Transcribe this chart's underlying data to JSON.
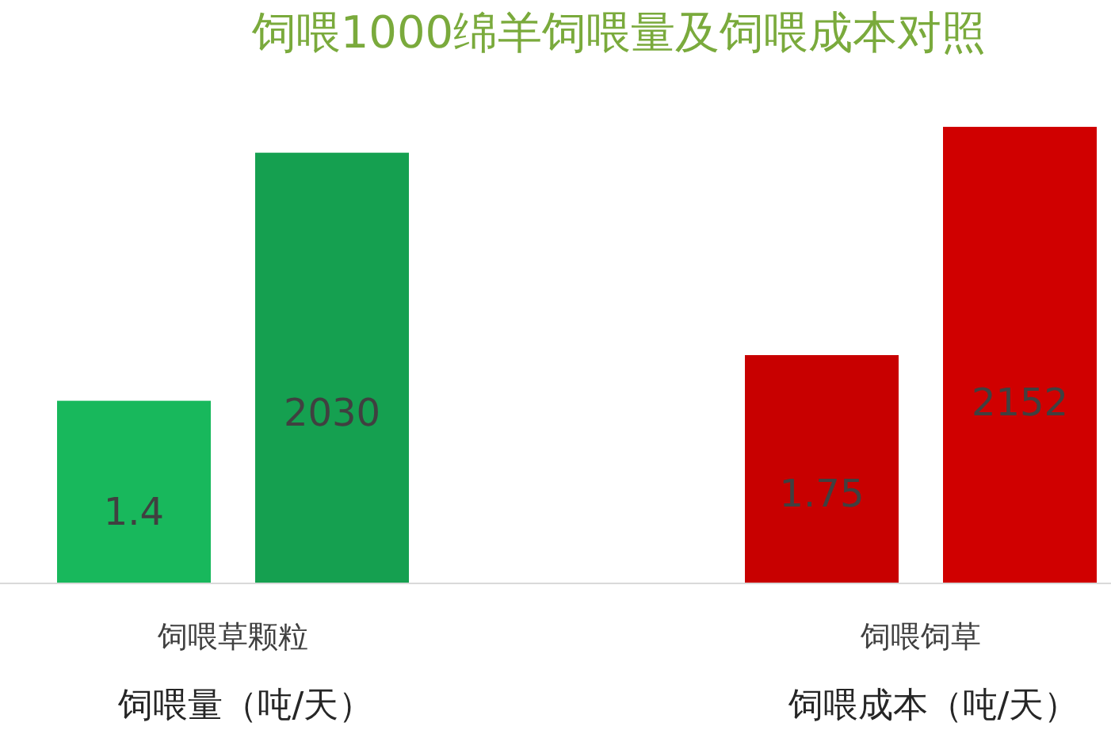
{
  "chart_data": {
    "type": "bar",
    "title": "饲喂1000绵羊饲喂量及饲喂成本对照",
    "categories": [
      "饲喂草颗粒",
      "饲喂饲草"
    ],
    "data_labels": true,
    "series": [
      {
        "colors": [
          "#18b85c",
          "#c80000"
        ],
        "values": [
          1.4,
          1.75
        ]
      },
      {
        "colors": [
          "#15a050",
          "#d00000"
        ],
        "values": [
          2030,
          2152
        ],
        "axis": "y2"
      }
    ],
    "annotations": [
      "饲喂量（吨/天）",
      "饲喂成本（吨/天）"
    ]
  }
}
